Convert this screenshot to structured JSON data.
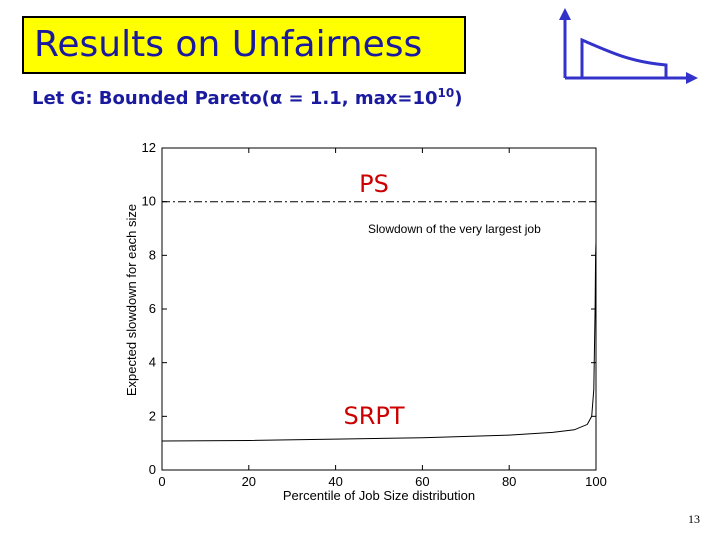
{
  "slide": {
    "title": "Results on Unfairness",
    "subtitle_prefix": "Let G: Bounded Pareto(",
    "subtitle_alpha": "α",
    "subtitle_mid": " = 1.1, max=10",
    "subtitle_exp": "10",
    "subtitle_suffix": ")",
    "page_number": "13"
  },
  "colors": {
    "title_bg": "#ffff00",
    "title_text": "#1a1aa0",
    "icon": "#3333cc"
  },
  "icon": {
    "name": "pareto-distribution-icon"
  },
  "chart_data": {
    "type": "line",
    "xlabel": "Percentile of Job Size distribution",
    "ylabel": "Expected slowdown for each size",
    "xlim": [
      0,
      100
    ],
    "ylim": [
      0,
      12
    ],
    "xticks": [
      0,
      20,
      40,
      60,
      80,
      100
    ],
    "yticks": [
      0,
      2,
      4,
      6,
      8,
      10,
      12
    ],
    "grid": false,
    "series": [
      {
        "name": "PS",
        "style": "dash-dot",
        "x": [
          0,
          100
        ],
        "y": [
          10,
          10
        ]
      },
      {
        "name": "SRPT",
        "style": "solid",
        "x": [
          0,
          20,
          40,
          60,
          80,
          90,
          95,
          98,
          99,
          99.5,
          99.8,
          99.9,
          100
        ],
        "y": [
          1.08,
          1.1,
          1.15,
          1.2,
          1.3,
          1.4,
          1.5,
          1.7,
          2.0,
          3.0,
          6.0,
          8.0,
          8.5
        ]
      }
    ],
    "annotations": [
      {
        "text": "PS"
      },
      {
        "text": "Slowdown of the very largest job"
      },
      {
        "text": "SRPT"
      }
    ]
  }
}
